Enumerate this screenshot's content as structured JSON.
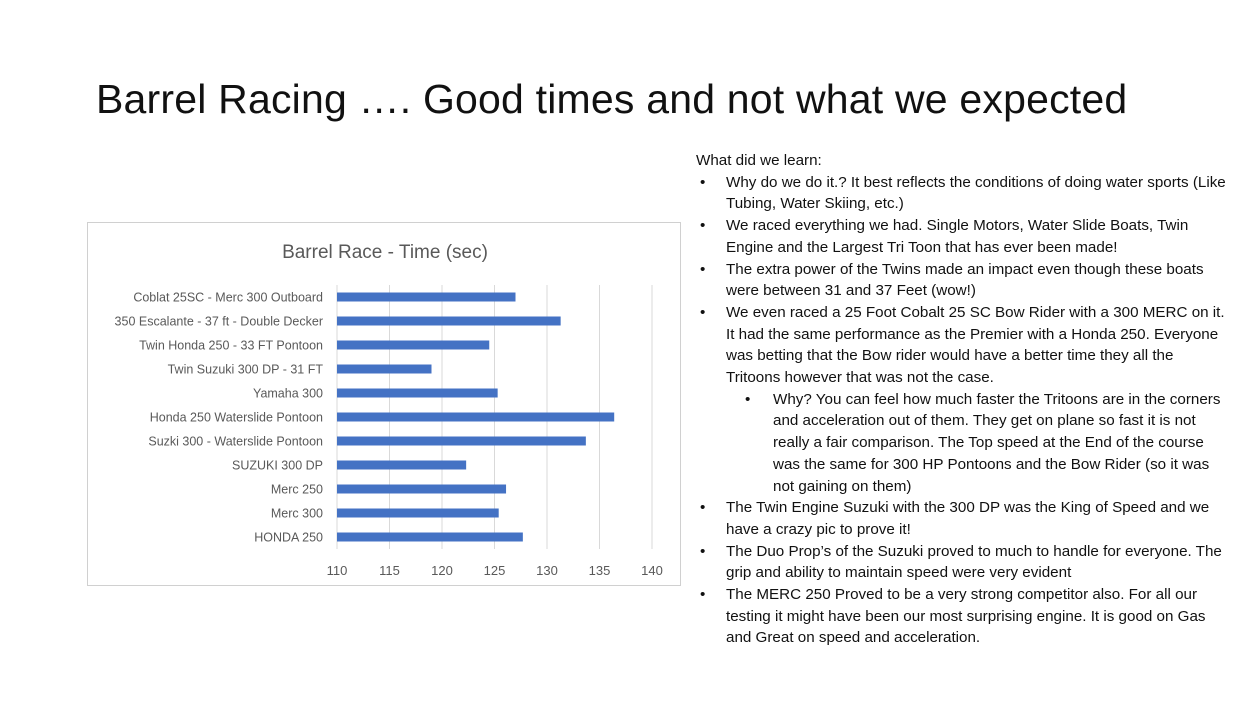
{
  "slide": {
    "title": "Barrel Racing …. Good times and not what we expected"
  },
  "notes": {
    "lead": "What did we learn:",
    "bullets": [
      "Why do we do it.?  It best reflects the conditions of doing water sports (Like Tubing, Water Skiing, etc.)",
      "We raced everything we had. Single Motors, Water Slide Boats, Twin Engine and the Largest Tri Toon that has ever been made!",
      "The extra power of the Twins made an impact even though these boats were between 31 and 37 Feet (wow!)",
      "We even raced a 25 Foot Cobalt 25 SC Bow Rider with a 300 MERC on it.  It had the same performance as the Premier with a Honda 250. Everyone was betting that the Bow rider would have a better time they all the Tritoons however that was not the case.",
      "The Twin Engine Suzuki with the 300 DP was the King of Speed and we have a crazy pic to prove it!",
      "The Duo Prop’s of the Suzuki proved to much to handle for everyone.  The grip and ability to maintain speed were very evident",
      "The MERC 250 Proved to be a very strong competitor also.  For all our testing it might have been our most surprising engine.  It is good on Gas and Great on speed and acceleration."
    ],
    "sub_bullet": "Why?  You can feel how much faster the Tritoons are in the corners and acceleration out of them.  They get on plane so fast it is not really a fair comparison.  The Top speed at the End of the course was the same for 300 HP Pontoons and the Bow Rider (so it was not gaining on them)"
  },
  "chart_data": {
    "type": "bar",
    "orientation": "horizontal",
    "title": "Barrel Race - Time (sec)",
    "xlabel": "",
    "ylabel": "",
    "categories": [
      "Coblat 25SC - Merc 300 Outboard",
      "350 Escalante - 37 ft - Double Decker",
      "Twin Honda 250 - 33 FT Pontoon",
      "Twin Suzuki 300 DP - 31 FT",
      "Yamaha 300",
      "Honda 250 Waterslide Pontoon",
      "Suzki 300 - Waterslide Pontoon",
      "SUZUKI 300 DP",
      "Merc 250",
      "Merc 300",
      "HONDA 250"
    ],
    "values": [
      127.0,
      131.3,
      124.5,
      119.0,
      125.3,
      136.4,
      133.7,
      122.3,
      126.1,
      125.4,
      127.7
    ],
    "xlim": [
      110,
      140
    ],
    "xticks": [
      110,
      115,
      120,
      125,
      130,
      135,
      140
    ],
    "grid": true,
    "legend": "none",
    "bar_color": "#4472C4",
    "grid_color": "#d9d9d9",
    "text_color": "#595959"
  }
}
